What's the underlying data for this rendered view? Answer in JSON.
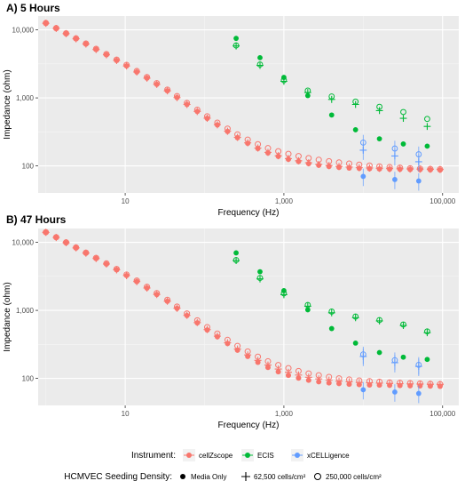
{
  "chart_data": [
    {
      "type": "scatter",
      "title": "A) 5 Hours",
      "xlabel": "Frequency (Hz)",
      "ylabel": "Impedance (ohm)",
      "xscale": "log",
      "yscale": "log",
      "xlim": [
        0.8,
        160000
      ],
      "ylim": [
        40,
        16000
      ],
      "xticks": [
        10,
        1000,
        100000
      ],
      "xtick_labels": [
        "10",
        "1,000",
        "100,000"
      ],
      "yticks": [
        100,
        1000,
        10000
      ],
      "ytick_labels": [
        "100",
        "1,000",
        "10,000"
      ],
      "grid": true,
      "series": [
        {
          "instrument": "cellZscope",
          "density": "Media Only",
          "x": [
            1,
            1.35,
            1.8,
            2.4,
            3.2,
            4.3,
            5.8,
            7.8,
            10.4,
            14,
            18.8,
            25,
            34,
            45,
            60,
            81,
            108,
            145,
            195,
            260,
            350,
            470,
            630,
            850,
            1140,
            1530,
            2050,
            2750,
            3700,
            4950,
            6650,
            8900,
            12000,
            16000,
            21500,
            29000,
            39000,
            52000,
            70000,
            93000
          ],
          "y": [
            12500,
            10500,
            8800,
            7400,
            6200,
            5150,
            4300,
            3550,
            2950,
            2400,
            1950,
            1580,
            1270,
            1010,
            800,
            630,
            500,
            400,
            320,
            260,
            215,
            180,
            155,
            138,
            125,
            116,
            108,
            102,
            98,
            95,
            93,
            92,
            91,
            90,
            89.5,
            89,
            88.5,
            88,
            87.5,
            87
          ]
        },
        {
          "instrument": "cellZscope",
          "density": "62,500 cells/cm²",
          "x": [
            1,
            1.35,
            1.8,
            2.4,
            3.2,
            4.3,
            5.8,
            7.8,
            10.4,
            14,
            18.8,
            25,
            34,
            45,
            60,
            81,
            108,
            145,
            195,
            260,
            350,
            470,
            630,
            850,
            1140,
            1530,
            2050,
            2750,
            3700,
            4950,
            6650,
            8900,
            12000,
            16000,
            21500,
            29000,
            39000,
            52000,
            70000,
            93000
          ],
          "y": [
            12500,
            10500,
            8800,
            7400,
            6200,
            5150,
            4300,
            3550,
            2950,
            2400,
            1950,
            1580,
            1270,
            1010,
            800,
            632,
            502,
            402,
            323,
            263,
            218,
            183,
            158,
            141,
            128,
            119,
            111,
            105,
            101,
            98,
            96,
            94,
            93,
            92,
            91,
            90.5,
            90,
            89.5,
            89,
            88.5
          ]
        },
        {
          "instrument": "cellZscope",
          "density": "250,000 cells/cm²",
          "x": [
            1,
            1.35,
            1.8,
            2.4,
            3.2,
            4.3,
            5.8,
            7.8,
            10.4,
            14,
            18.8,
            25,
            34,
            45,
            60,
            81,
            108,
            145,
            195,
            260,
            350,
            470,
            630,
            850,
            1140,
            1530,
            2050,
            2750,
            3700,
            4950,
            6650,
            8900,
            12000,
            16000,
            21500,
            29000,
            39000,
            52000,
            70000,
            93000
          ],
          "y": [
            12600,
            10600,
            8900,
            7500,
            6300,
            5250,
            4400,
            3650,
            3050,
            2480,
            2020,
            1640,
            1320,
            1060,
            840,
            668,
            535,
            432,
            352,
            290,
            243,
            208,
            182,
            164,
            150,
            139,
            130,
            123,
            117,
            112,
            108,
            104,
            101,
            98,
            96,
            94,
            92,
            91,
            90,
            89
          ]
        },
        {
          "instrument": "ECIS",
          "density": "Media Only",
          "x": [
            250,
            500,
            1000,
            2000,
            4000,
            8000,
            16000,
            32000,
            64000
          ],
          "y": [
            7500,
            3900,
            2000,
            1080,
            560,
            340,
            250,
            210,
            195
          ]
        },
        {
          "instrument": "ECIS",
          "density": "62,500 cells/cm²",
          "x": [
            250,
            500,
            1000,
            2000,
            4000,
            8000,
            16000,
            32000,
            64000
          ],
          "y": [
            5800,
            3000,
            1750,
            1200,
            950,
            800,
            650,
            500,
            380
          ]
        },
        {
          "instrument": "ECIS",
          "density": "250,000 cells/cm²",
          "x": [
            250,
            500,
            1000,
            2000,
            4000,
            8000,
            16000,
            32000,
            64000
          ],
          "y": [
            5900,
            3100,
            1820,
            1280,
            1050,
            880,
            740,
            620,
            490
          ]
        },
        {
          "instrument": "xCELLigence",
          "density": "Media Only",
          "x": [
            10000,
            25000,
            50000
          ],
          "y": [
            70,
            63,
            60
          ]
        },
        {
          "instrument": "xCELLigence",
          "density": "62,500 cells/cm²",
          "x": [
            10000,
            25000,
            50000
          ],
          "y": [
            170,
            140,
            115
          ]
        },
        {
          "instrument": "xCELLigence",
          "density": "250,000 cells/cm²",
          "x": [
            10000,
            25000,
            50000
          ],
          "y": [
            220,
            180,
            148
          ]
        }
      ]
    },
    {
      "type": "scatter",
      "title": "B) 47 Hours",
      "xlabel": "Frequency (Hz)",
      "ylabel": "Impedance (ohm)",
      "xscale": "log",
      "yscale": "log",
      "xlim": [
        0.8,
        160000
      ],
      "ylim": [
        40,
        16000
      ],
      "xticks": [
        10,
        1000,
        100000
      ],
      "xtick_labels": [
        "10",
        "1,000",
        "100,000"
      ],
      "yticks": [
        100,
        1000,
        10000
      ],
      "ytick_labels": [
        "100",
        "1,000",
        "10,000"
      ],
      "grid": true,
      "series": [
        {
          "instrument": "cellZscope",
          "density": "Media Only",
          "x": [
            1,
            1.35,
            1.8,
            2.4,
            3.2,
            4.3,
            5.8,
            7.8,
            10.4,
            14,
            18.8,
            25,
            34,
            45,
            60,
            81,
            108,
            145,
            195,
            260,
            350,
            470,
            630,
            850,
            1140,
            1530,
            2050,
            2750,
            3700,
            4950,
            6650,
            8900,
            12000,
            16000,
            21500,
            29000,
            39000,
            52000,
            70000,
            93000
          ],
          "y": [
            14000,
            11800,
            9900,
            8300,
            6950,
            5800,
            4800,
            3950,
            3250,
            2650,
            2130,
            1710,
            1360,
            1070,
            840,
            655,
            515,
            410,
            325,
            260,
            210,
            172,
            145,
            125,
            111,
            101,
            94,
            89,
            86,
            84,
            82,
            81,
            80,
            79.5,
            79,
            78.5,
            78,
            77.5,
            77,
            76.5
          ]
        },
        {
          "instrument": "cellZscope",
          "density": "62,500 cells/cm²",
          "x": [
            1,
            1.35,
            1.8,
            2.4,
            3.2,
            4.3,
            5.8,
            7.8,
            10.4,
            14,
            18.8,
            25,
            34,
            45,
            60,
            81,
            108,
            145,
            195,
            260,
            350,
            470,
            630,
            850,
            1140,
            1530,
            2050,
            2750,
            3700,
            4950,
            6650,
            8900,
            12000,
            16000,
            21500,
            29000,
            39000,
            52000,
            70000,
            93000
          ],
          "y": [
            14000,
            11800,
            9900,
            8300,
            6950,
            5800,
            4800,
            3950,
            3250,
            2650,
            2130,
            1712,
            1363,
            1074,
            845,
            662,
            522,
            418,
            334,
            270,
            221,
            184,
            157,
            137,
            123,
            112,
            104,
            98,
            94,
            91,
            89,
            87,
            86,
            85,
            84,
            83.5,
            83,
            82.5,
            82,
            81.5
          ]
        },
        {
          "instrument": "cellZscope",
          "density": "250,000 cells/cm²",
          "x": [
            1,
            1.35,
            1.8,
            2.4,
            3.2,
            4.3,
            5.8,
            7.8,
            10.4,
            14,
            18.8,
            25,
            34,
            45,
            60,
            81,
            108,
            145,
            195,
            260,
            350,
            470,
            630,
            850,
            1140,
            1530,
            2050,
            2750,
            3700,
            4950,
            6650,
            8900,
            12000,
            16000,
            21500,
            29000,
            39000,
            52000,
            70000,
            93000
          ],
          "y": [
            14100,
            11900,
            10000,
            8400,
            7050,
            5900,
            4900,
            4050,
            3350,
            2740,
            2220,
            1790,
            1430,
            1135,
            900,
            712,
            566,
            455,
            368,
            300,
            248,
            208,
            178,
            157,
            141,
            128,
            118,
            111,
            105,
            100,
            96,
            93,
            91,
            89,
            87,
            86,
            85,
            84,
            83,
            82
          ]
        },
        {
          "instrument": "ECIS",
          "density": "Media Only",
          "x": [
            250,
            500,
            1000,
            2000,
            4000,
            8000,
            16000,
            32000,
            64000
          ],
          "y": [
            7000,
            3700,
            1950,
            1020,
            540,
            330,
            240,
            205,
            190
          ]
        },
        {
          "instrument": "ECIS",
          "density": "62,500 cells/cm²",
          "x": [
            250,
            500,
            1000,
            2000,
            4000,
            8000,
            16000,
            32000,
            64000
          ],
          "y": [
            5400,
            2900,
            1700,
            1150,
            920,
            780,
            700,
            600,
            470
          ]
        },
        {
          "instrument": "ECIS",
          "density": "250,000 cells/cm²",
          "x": [
            250,
            500,
            1000,
            2000,
            4000,
            8000,
            16000,
            32000,
            64000
          ],
          "y": [
            5500,
            3000,
            1780,
            1200,
            960,
            810,
            720,
            620,
            490
          ]
        },
        {
          "instrument": "xCELLigence",
          "density": "Media Only",
          "x": [
            10000,
            25000,
            50000
          ],
          "y": [
            68,
            63,
            60
          ]
        },
        {
          "instrument": "xCELLigence",
          "density": "62,500 cells/cm²",
          "x": [
            10000,
            25000,
            50000
          ],
          "y": [
            210,
            170,
            150
          ]
        },
        {
          "instrument": "xCELLigence",
          "density": "250,000 cells/cm²",
          "x": [
            10000,
            25000,
            50000
          ],
          "y": [
            225,
            185,
            158
          ]
        }
      ]
    }
  ],
  "instrument_colors": {
    "cellZscope": "#F8766D",
    "ECIS": "#00BA38",
    "xCELLigence": "#619CFF"
  },
  "panel_bg": "#EBEBEB",
  "legend": {
    "instrument_title": "Instrument:",
    "instruments": [
      {
        "label": "cellZscope",
        "color": "#F8766D"
      },
      {
        "label": "ECIS",
        "color": "#00BA38"
      },
      {
        "label": "xCELLigence",
        "color": "#619CFF"
      }
    ],
    "density_title": "HCMVEC Seeding Density:",
    "densities": [
      {
        "label": "Media Only",
        "shape": "filled-circle"
      },
      {
        "label": "62,500 cells/cm²",
        "shape": "plus"
      },
      {
        "label": "250,000 cells/cm²",
        "shape": "open-circle"
      }
    ]
  }
}
